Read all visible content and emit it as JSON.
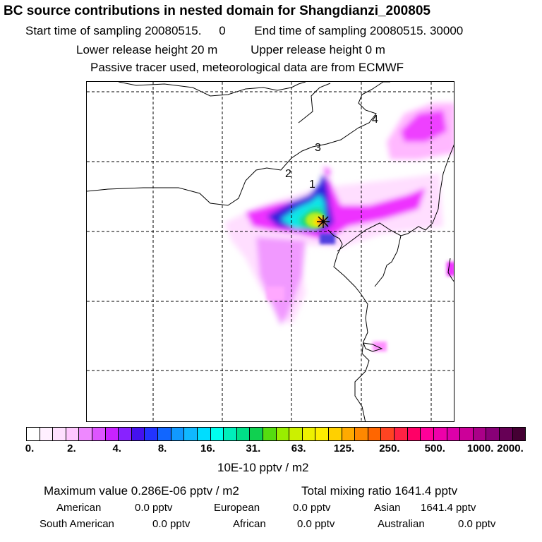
{
  "header": {
    "title": "BC  source contributions in nested domain for Shangdianzi_200805",
    "start_label": "Start time of sampling 20080515.",
    "start_hour": "0",
    "end_label": "End time of sampling 20080515. 30000",
    "lower_release": "Lower release height   20 m",
    "upper_release": "Upper release height    0 m",
    "tracer_note": "Passive tracer used, meteorological data are from ECMWF"
  },
  "map": {
    "region_labels": [
      "1",
      "2",
      "3",
      "4"
    ],
    "receptor_marker": "star-marker",
    "colors": [
      "#fff4ff",
      "#ffd8ff",
      "#ffa8ff",
      "#ff78ff",
      "#ee30ff",
      "#2e22dd",
      "#1898ff",
      "#10e8e8",
      "#20d870",
      "#b8f020",
      "#ffe000",
      "#ff8800",
      "#ff0038",
      "#c8007c",
      "#3c0040"
    ]
  },
  "colorbar": {
    "segments": [
      "#ffffff",
      "#fff0ff",
      "#ffe0ff",
      "#ffc8ff",
      "#ee88ff",
      "#dd55ff",
      "#c822ff",
      "#8822ff",
      "#4411ee",
      "#2233ff",
      "#1166ff",
      "#1199ff",
      "#10b8ff",
      "#00ddff",
      "#00ffee",
      "#00eebb",
      "#00e088",
      "#10d050",
      "#55dd10",
      "#99ee00",
      "#ccf000",
      "#eef000",
      "#ffee00",
      "#ffd000",
      "#ffaa00",
      "#ff8800",
      "#ff6600",
      "#ff4422",
      "#ff2244",
      "#ff0066",
      "#ff0099",
      "#ee00aa",
      "#dd00aa",
      "#cc0099",
      "#aa0088",
      "#880077",
      "#660055",
      "#440033"
    ],
    "tick_labels": [
      "0.",
      "2.",
      "4.",
      "8.",
      "16.",
      "31.",
      "63.",
      "125.",
      "250.",
      "500.",
      "1000.",
      "2000."
    ],
    "units": "10E-10 pptv / m2"
  },
  "stats": {
    "max_value": "Maximum value  0.286E-06 pptv / m2",
    "total_mixing": "Total mixing ratio     1641.4 pptv",
    "sources": [
      {
        "label": "American",
        "value": "0.0 pptv"
      },
      {
        "label": "European",
        "value": "0.0 pptv"
      },
      {
        "label": "Asian",
        "value": "1641.4 pptv"
      },
      {
        "label": "South American",
        "value": "0.0 pptv"
      },
      {
        "label": "African",
        "value": "0.0 pptv"
      },
      {
        "label": "Australian",
        "value": "0.0 pptv"
      }
    ]
  }
}
